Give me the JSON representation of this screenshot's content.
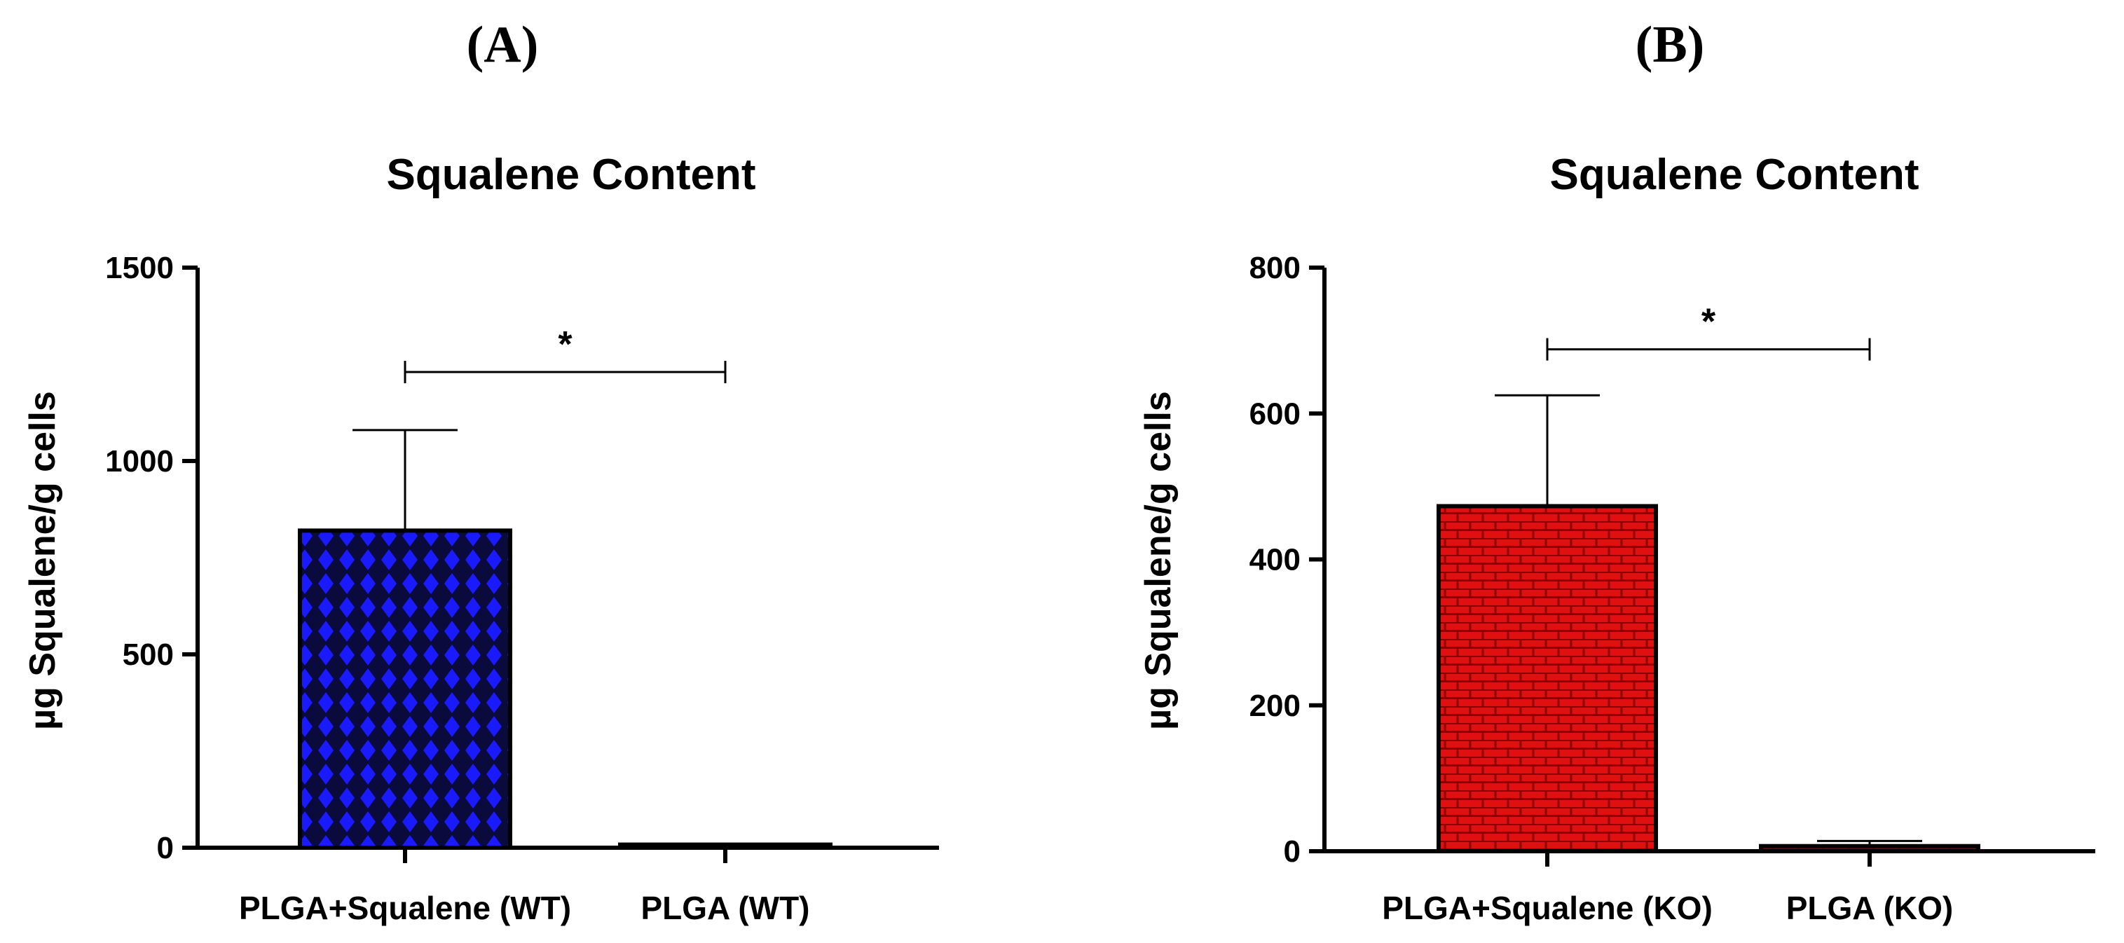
{
  "chart_data": [
    {
      "panel": "(A)",
      "type": "bar",
      "title": "Squalene  Content",
      "xlabel": "",
      "ylabel": "µg Squalene/g cells",
      "categories": [
        "PLGA+Squalene (WT)",
        "PLGA (WT)"
      ],
      "values": [
        820,
        8
      ],
      "error_upper": [
        1080,
        null
      ],
      "ylim": [
        0,
        1500
      ],
      "yticks": [
        "0",
        "500",
        "1000",
        "1500"
      ],
      "ytick_values": [
        0,
        500,
        1000,
        1500
      ],
      "bar_colors": [
        "#1a1aff",
        "#1a1aff"
      ],
      "bar_pattern": "diamond",
      "significance": {
        "from": 0,
        "to": 1,
        "label": "*",
        "level": 1230
      },
      "grid": false
    },
    {
      "panel": "(B)",
      "type": "bar",
      "title": "Squalene  Content",
      "xlabel": "",
      "ylabel": "µg Squalene/g cells",
      "categories": [
        "PLGA+Squalene (KO)",
        "PLGA (KO)"
      ],
      "values": [
        473,
        7
      ],
      "error_upper": [
        625,
        14
      ],
      "ylim": [
        0,
        800
      ],
      "yticks": [
        "0",
        "200",
        "400",
        "600",
        "800"
      ],
      "ytick_values": [
        0,
        200,
        400,
        600,
        800
      ],
      "bar_colors": [
        "#e01010",
        "#e01010"
      ],
      "bar_pattern": "brick",
      "significance": {
        "from": 0,
        "to": 1,
        "label": "*",
        "level": 688
      },
      "grid": false
    }
  ]
}
